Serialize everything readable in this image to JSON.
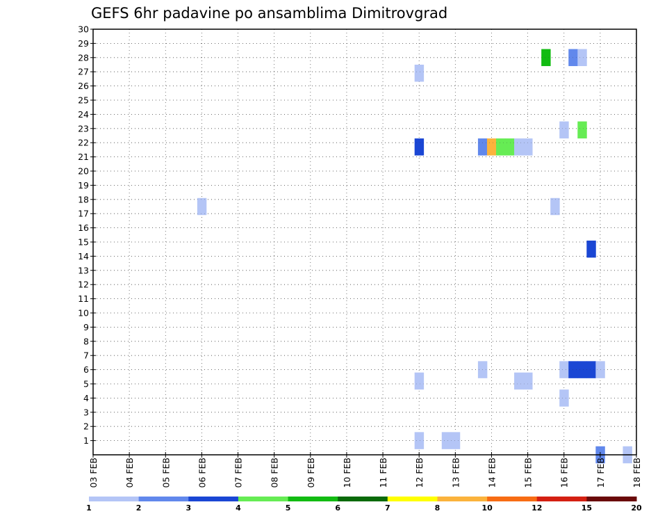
{
  "chart_data": {
    "type": "heatmap",
    "title": "GEFS 6hr padavine po ansamblima Dimitrovgrad",
    "x_ticks": [
      "03 FEB",
      "04 FEB",
      "05 FEB",
      "06 FEB",
      "07 FEB",
      "08 FEB",
      "09 FEB",
      "10 FEB",
      "11 FEB",
      "12 FEB",
      "13 FEB",
      "14 FEB",
      "15 FEB",
      "16 FEB",
      "17 FEB",
      "18 FEB"
    ],
    "x_range_days": [
      0,
      15
    ],
    "y_ticks": [
      "1",
      "2",
      "3",
      "4",
      "5",
      "6",
      "7",
      "8",
      "9",
      "10",
      "11",
      "12",
      "13",
      "14",
      "15",
      "16",
      "17",
      "18",
      "19",
      "20",
      "21",
      "22",
      "23",
      "24",
      "25",
      "26",
      "27",
      "28",
      "29",
      "30"
    ],
    "y_range": [
      0,
      30
    ],
    "grid": true,
    "legend": {
      "placement": "bottom",
      "colors": [
        "#b4c5f6",
        "#6188ec",
        "#1a46d4",
        "#66ec54",
        "#12bb12",
        "#0a6a0a",
        "#ffff00",
        "#fbb33c",
        "#f76c14",
        "#d42012",
        "#6a0a0a"
      ],
      "labels": [
        "1",
        "2",
        "3",
        "4",
        "5",
        "6",
        "7",
        "8",
        "10",
        "12",
        "15",
        "20"
      ]
    },
    "cells": [
      {
        "t": 3.0,
        "m": 17.5,
        "c": 0
      },
      {
        "t": 9.0,
        "m": 26.9,
        "c": 0
      },
      {
        "t": 9.0,
        "m": 21.7,
        "c": 2
      },
      {
        "t": 9.0,
        "m": 5.2,
        "c": 0
      },
      {
        "t": 9.0,
        "m": 1.0,
        "c": 0
      },
      {
        "t": 9.75,
        "m": 1.0,
        "c": 0
      },
      {
        "t": 10.0,
        "m": 1.0,
        "c": 0
      },
      {
        "t": 10.75,
        "m": 21.7,
        "c": 1
      },
      {
        "t": 11.0,
        "m": 21.7,
        "c": 7
      },
      {
        "t": 11.25,
        "m": 21.7,
        "c": 3
      },
      {
        "t": 11.5,
        "m": 21.7,
        "c": 3
      },
      {
        "t": 11.75,
        "m": 21.7,
        "c": 0
      },
      {
        "t": 12.0,
        "m": 21.7,
        "c": 0
      },
      {
        "t": 10.75,
        "m": 6.0,
        "c": 0
      },
      {
        "t": 11.75,
        "m": 5.2,
        "c": 0
      },
      {
        "t": 12.0,
        "m": 5.2,
        "c": 0
      },
      {
        "t": 12.5,
        "m": 28.0,
        "c": 4
      },
      {
        "t": 13.25,
        "m": 28.0,
        "c": 1
      },
      {
        "t": 13.5,
        "m": 28.0,
        "c": 0
      },
      {
        "t": 13.0,
        "m": 22.9,
        "c": 0
      },
      {
        "t": 13.5,
        "m": 22.9,
        "c": 3
      },
      {
        "t": 12.75,
        "m": 17.5,
        "c": 0
      },
      {
        "t": 13.75,
        "m": 14.5,
        "c": 2
      },
      {
        "t": 13.0,
        "m": 6.0,
        "c": 0
      },
      {
        "t": 13.25,
        "m": 6.0,
        "c": 2
      },
      {
        "t": 13.5,
        "m": 6.0,
        "c": 2
      },
      {
        "t": 13.75,
        "m": 6.0,
        "c": 2
      },
      {
        "t": 14.0,
        "m": 6.0,
        "c": 0
      },
      {
        "t": 13.0,
        "m": 4.0,
        "c": 0
      },
      {
        "t": 14.0,
        "m": 0.0,
        "c": 1
      },
      {
        "t": 14.75,
        "m": 0.0,
        "c": 0
      }
    ]
  }
}
